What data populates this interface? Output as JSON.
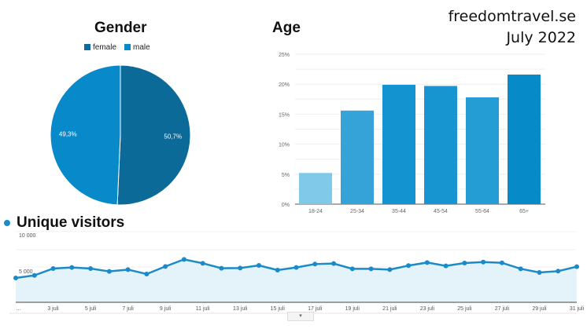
{
  "brand": {
    "site": "freedomtravel.se",
    "period": "July 2022"
  },
  "chart_data": [
    {
      "type": "pie",
      "title": "Gender",
      "legend": "top",
      "categories": [
        "female",
        "male"
      ],
      "values": [
        50.7,
        49.3
      ],
      "labels": [
        "50,7%",
        "49,3%"
      ],
      "colors": [
        "#0b6a97",
        "#0889c9"
      ]
    },
    {
      "type": "bar",
      "title": "Age",
      "categories": [
        "18-24",
        "25-34",
        "35-44",
        "45-54",
        "55-64",
        "65+"
      ],
      "values": [
        5.2,
        15.6,
        19.9,
        19.7,
        17.8,
        21.6
      ],
      "ylim": [
        0,
        25
      ],
      "yticks": [
        "0%",
        "5%",
        "10%",
        "15%",
        "20%",
        "25%"
      ],
      "colors": [
        "#80c9e9",
        "#35a3d7",
        "#1393cf",
        "#1795d0",
        "#249cd4",
        "#078bc8"
      ],
      "grid": true
    },
    {
      "type": "area",
      "title": "Unique visitors",
      "x": [
        1,
        2,
        3,
        4,
        5,
        6,
        7,
        8,
        9,
        10,
        11,
        12,
        13,
        14,
        15,
        16,
        17,
        18,
        19,
        20,
        21,
        22,
        23,
        24,
        25,
        26,
        27,
        28,
        29,
        30,
        31
      ],
      "values": [
        3440,
        3810,
        4780,
        4930,
        4780,
        4370,
        4630,
        4000,
        5070,
        6070,
        5520,
        4820,
        4850,
        5220,
        4560,
        4930,
        5410,
        5480,
        4740,
        4740,
        4630,
        5190,
        5630,
        5150,
        5560,
        5700,
        5590,
        4740,
        4220,
        4410,
        5040
      ],
      "ylim": [
        0,
        10000
      ],
      "yticks": [
        "5 000",
        "10 000"
      ],
      "xticks": [
        "…",
        "3 juli",
        "5 juli",
        "7 juli",
        "9 juli",
        "11 juli",
        "13 juli",
        "15 juli",
        "17 juli",
        "19 juli",
        "21 juli",
        "23 juli",
        "25 juli",
        "27 juli",
        "29 juli",
        "31 juli"
      ],
      "color": "#1a8bc8",
      "fill": "#e4f2fa"
    }
  ],
  "scroll_label": "▾"
}
